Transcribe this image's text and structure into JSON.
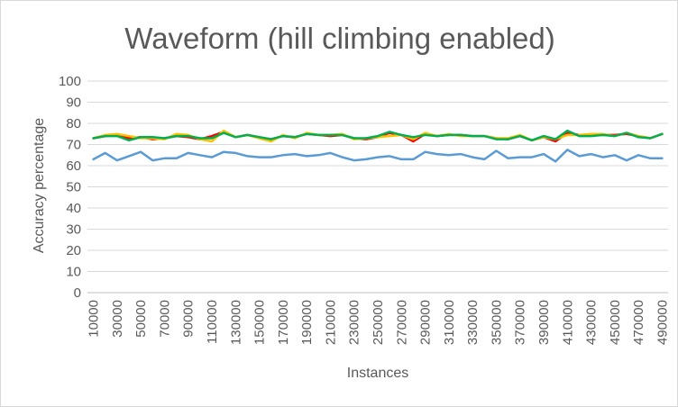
{
  "chart_data": {
    "type": "line",
    "title": "Waveform (hill climbing enabled)",
    "xlabel": "Instances",
    "ylabel": "Accuracy percentage",
    "ylim": [
      0,
      100
    ],
    "yticks": [
      0,
      10,
      20,
      30,
      40,
      50,
      60,
      70,
      80,
      90,
      100
    ],
    "grid": true,
    "legend": "none",
    "x": [
      10000,
      20000,
      30000,
      40000,
      50000,
      60000,
      70000,
      80000,
      90000,
      100000,
      110000,
      120000,
      130000,
      140000,
      150000,
      160000,
      170000,
      180000,
      190000,
      200000,
      210000,
      220000,
      230000,
      240000,
      250000,
      260000,
      270000,
      280000,
      290000,
      300000,
      310000,
      320000,
      330000,
      340000,
      350000,
      360000,
      370000,
      380000,
      390000,
      400000,
      410000,
      420000,
      430000,
      440000,
      450000,
      460000,
      470000,
      480000,
      490000
    ],
    "xtick_labels": [
      "10000",
      "30000",
      "50000",
      "70000",
      "90000",
      "110000",
      "130000",
      "150000",
      "170000",
      "190000",
      "210000",
      "230000",
      "250000",
      "270000",
      "290000",
      "310000",
      "330000",
      "350000",
      "370000",
      "390000",
      "410000",
      "430000",
      "450000",
      "470000",
      "490000"
    ],
    "series": [
      {
        "color": "#5B9BD5",
        "values": [
          63,
          66,
          62.5,
          64.5,
          66.5,
          62.5,
          63.5,
          63.5,
          66,
          65,
          64,
          66.5,
          66,
          64.5,
          64,
          64,
          65,
          65.5,
          64.5,
          65,
          66,
          64,
          62.5,
          63,
          64,
          64.5,
          63,
          63,
          66.5,
          65.5,
          65,
          65.5,
          64,
          63,
          67,
          63.5,
          64,
          64,
          65.5,
          62,
          67.5,
          64.5,
          65.5,
          64,
          65,
          62.5,
          65,
          63.5,
          63.5
        ]
      },
      {
        "color": "#FF0000",
        "values": [
          73,
          74,
          74.5,
          73,
          73.5,
          72.5,
          73,
          74,
          73.5,
          72.5,
          74,
          76,
          73.5,
          74.5,
          73.5,
          72.5,
          74,
          73.5,
          75,
          74.5,
          74,
          74.5,
          73,
          72.5,
          73.5,
          75.5,
          74.5,
          71.5,
          75,
          74,
          74.5,
          74.5,
          74,
          74,
          73,
          72.5,
          74,
          72,
          73.5,
          71.5,
          75.5,
          74.5,
          74.5,
          74.5,
          74.5,
          75,
          74,
          73,
          75
        ]
      },
      {
        "color": "#FFC000",
        "values": [
          73,
          74.5,
          75,
          74,
          73,
          73,
          72.5,
          75,
          74.5,
          72.5,
          71.5,
          76.5,
          73.5,
          74.5,
          73,
          71.5,
          74.5,
          73,
          75.5,
          74.5,
          74.5,
          75,
          72.5,
          73,
          73.5,
          74,
          74.5,
          72.5,
          75.5,
          74,
          75,
          74,
          74,
          74,
          73,
          73,
          74.5,
          72,
          73.5,
          72.5,
          74.5,
          74.5,
          75,
          75,
          74,
          75.5,
          74,
          73,
          75
        ]
      },
      {
        "color": "#00B050",
        "values": [
          73,
          74,
          74,
          72,
          73.5,
          73.5,
          73,
          74,
          74,
          73,
          73,
          75.5,
          73.5,
          74.5,
          73.5,
          72.5,
          74,
          73.5,
          75,
          74.5,
          74.5,
          74.5,
          73,
          73,
          74,
          76,
          74.5,
          73.5,
          74.5,
          74,
          74.5,
          74.5,
          74,
          74,
          72.5,
          72.5,
          74,
          72,
          74,
          72.5,
          76.5,
          74,
          74,
          74.5,
          74,
          75.5,
          73.5,
          73,
          75
        ]
      }
    ],
    "colors": {
      "gridline": "#D9D9D9",
      "axis": "#BFBFBF",
      "text": "#595959"
    }
  }
}
